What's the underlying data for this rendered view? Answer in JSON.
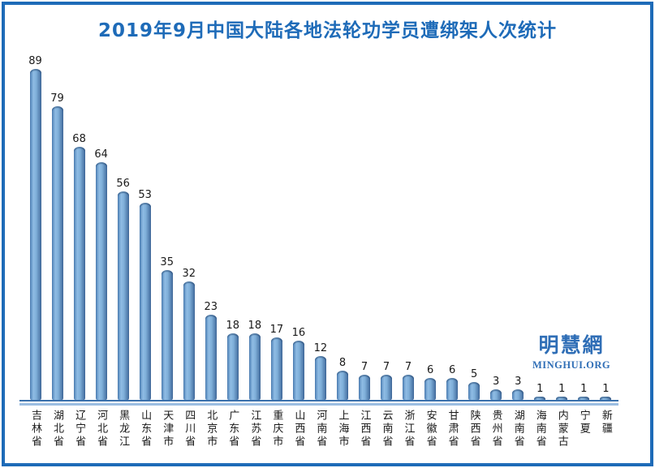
{
  "page": {
    "title": "2019年9月中国大陆各地法轮功学员遭绑架人次统计"
  },
  "watermark": {
    "cjk": "明慧網",
    "latin": "MINGHUI.ORG"
  },
  "colors": {
    "accent_blue": "#1E6BB8",
    "bar_fill_light": "#8FBCE4",
    "bar_fill_dark": "#40699B",
    "axis_dark": "#3A70AC",
    "axis_light": "#9CBEE2",
    "label_text": "#1A1A1A"
  },
  "chart_data": {
    "type": "bar",
    "title": "2019年9月中国大陆各地法轮功学员遭绑架人次统计",
    "categories": [
      "吉林省",
      "湖北省",
      "辽宁省",
      "河北省",
      "黑龙江",
      "山东省",
      "天津市",
      "四川省",
      "北京市",
      "广东省",
      "江苏省",
      "重庆市",
      "山西省",
      "河南省",
      "上海市",
      "江西省",
      "云南省",
      "浙江省",
      "安徽省",
      "甘肃省",
      "陕西省",
      "贵州省",
      "湖南省",
      "海南省",
      "内蒙古",
      "宁夏",
      "新疆"
    ],
    "values": [
      89,
      79,
      68,
      64,
      56,
      53,
      35,
      32,
      23,
      18,
      18,
      17,
      16,
      12,
      8,
      7,
      7,
      7,
      6,
      6,
      5,
      3,
      3,
      1,
      1,
      1,
      1
    ],
    "xlabel": "",
    "ylabel": "",
    "ylim": [
      0,
      95
    ],
    "grid": false,
    "legend": false,
    "data_labels": true,
    "orientation": "vertical",
    "bar_style": "cylinder",
    "category_label_orientation": "vertical"
  }
}
